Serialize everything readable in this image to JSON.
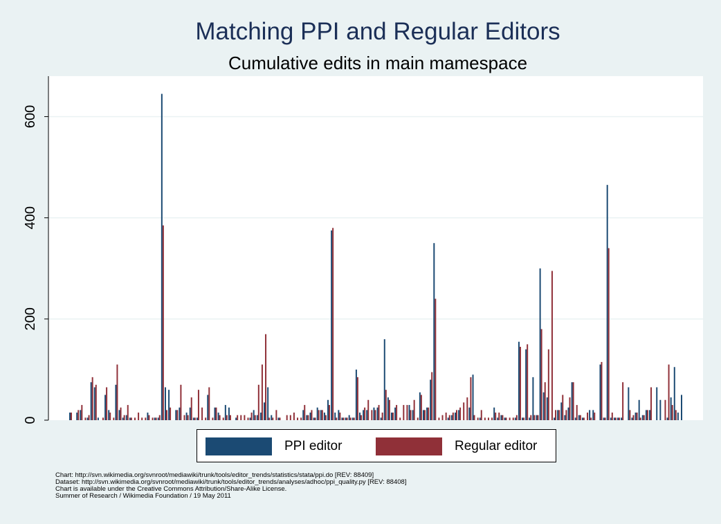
{
  "title": "Matching PPI and Regular Editors",
  "subtitle": "Cumulative edits in main mamespace",
  "colors": {
    "ppi": "#1b4a73",
    "regular": "#903038",
    "background": "#eaf2f3",
    "plot": "#ffffff",
    "grid": "#eaf2f3"
  },
  "legend": {
    "items": [
      {
        "label": "PPI editor",
        "color": "#1b4a73"
      },
      {
        "label": "Regular editor",
        "color": "#903038"
      }
    ]
  },
  "notes": [
    "Chart: http://svn.wikimedia.org/svnroot/mediawiki/trunk/tools/editor_trends/statistics/stata/ppi.do [REV: 88409]",
    "Dataset: http://svn.wikimedia.org/svnroot/mediawiki/trunk/tools/editor_trends/analyses/adhoc/ppi_quality.py [REV: 88408]",
    "Chart is available under the Creative Commons Attribution/Share-Alike License.",
    "Summer of Research / Wikimedia Foundation / 19 May 2011"
  ],
  "chart_data": {
    "type": "bar",
    "ylim": [
      0,
      680
    ],
    "yticks": [
      0,
      200,
      400,
      600
    ],
    "grid": true,
    "legend_position": "bottom",
    "series": [
      {
        "name": "PPI editor",
        "values": [
          15,
          0,
          15,
          20,
          0,
          5,
          75,
          65,
          5,
          0,
          50,
          20,
          0,
          70,
          20,
          5,
          10,
          5,
          0,
          0,
          0,
          0,
          15,
          0,
          5,
          5,
          645,
          65,
          60,
          0,
          20,
          25,
          0,
          15,
          25,
          5,
          5,
          0,
          0,
          50,
          0,
          25,
          15,
          0,
          30,
          25,
          0,
          5,
          0,
          0,
          0,
          5,
          20,
          10,
          15,
          35,
          65,
          10,
          0,
          5,
          0,
          0,
          0,
          0,
          0,
          0,
          20,
          10,
          15,
          5,
          25,
          20,
          15,
          40,
          375,
          15,
          20,
          5,
          5,
          10,
          5,
          100,
          15,
          20,
          20,
          0,
          25,
          25,
          5,
          160,
          45,
          15,
          25,
          0,
          0,
          0,
          30,
          20,
          0,
          55,
          20,
          25,
          80,
          350,
          0,
          0,
          0,
          5,
          10,
          15,
          20,
          0,
          0,
          25,
          90,
          0,
          5,
          0,
          0,
          0,
          25,
          5,
          10,
          5,
          0,
          0,
          5,
          155,
          5,
          140,
          5,
          85,
          10,
          300,
          55,
          45,
          0,
          5,
          20,
          35,
          10,
          25,
          75,
          5,
          10,
          5,
          0,
          20,
          20,
          0,
          110,
          5,
          465,
          5,
          5,
          5,
          5,
          0,
          65,
          5,
          15,
          40,
          10,
          20,
          20,
          0,
          65,
          40,
          0,
          5,
          45,
          105,
          15,
          50
        ],
        "color": "#1b4a73"
      },
      {
        "name": "Regular editor",
        "values": [
          15,
          0,
          20,
          30,
          5,
          10,
          85,
          70,
          0,
          5,
          65,
          15,
          5,
          110,
          25,
          10,
          30,
          5,
          5,
          15,
          5,
          5,
          10,
          5,
          5,
          10,
          385,
          20,
          25,
          0,
          20,
          70,
          10,
          10,
          45,
          5,
          60,
          25,
          5,
          65,
          5,
          25,
          10,
          5,
          10,
          10,
          0,
          10,
          10,
          10,
          5,
          15,
          10,
          70,
          110,
          170,
          5,
          5,
          20,
          5,
          0,
          10,
          10,
          15,
          5,
          5,
          30,
          10,
          20,
          5,
          20,
          20,
          10,
          30,
          380,
          5,
          15,
          5,
          5,
          5,
          5,
          85,
          10,
          25,
          40,
          20,
          20,
          30,
          15,
          60,
          40,
          15,
          30,
          5,
          30,
          30,
          20,
          40,
          5,
          50,
          20,
          25,
          95,
          240,
          5,
          10,
          15,
          10,
          15,
          20,
          25,
          35,
          45,
          85,
          10,
          5,
          20,
          5,
          5,
          5,
          15,
          15,
          10,
          5,
          5,
          5,
          10,
          145,
          5,
          150,
          10,
          10,
          10,
          180,
          75,
          140,
          295,
          20,
          20,
          50,
          20,
          45,
          75,
          30,
          10,
          5,
          15,
          5,
          15,
          0,
          115,
          5,
          340,
          15,
          5,
          5,
          75,
          0,
          20,
          10,
          15,
          5,
          10,
          20,
          65,
          0,
          0,
          0,
          40,
          110,
          30,
          20
        ]
      }
    ]
  }
}
